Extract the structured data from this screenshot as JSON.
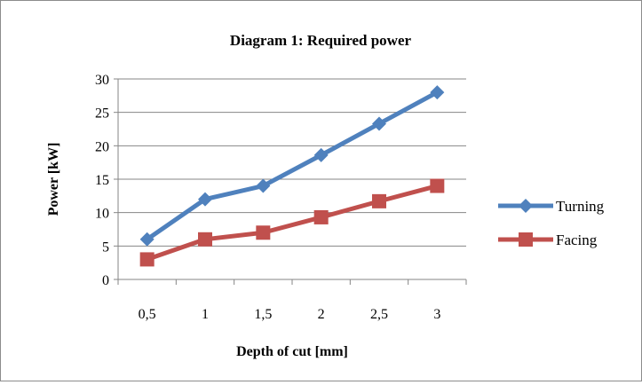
{
  "chart_data": {
    "type": "line",
    "title": "Diagram 1: Required power",
    "xlabel": "Depth of cut [mm]",
    "ylabel": "Power [kW]",
    "categories": [
      "0,5",
      "1",
      "1,5",
      "2",
      "2,5",
      "3"
    ],
    "ylim": [
      0,
      30
    ],
    "yticks": [
      0,
      5,
      10,
      15,
      20,
      25,
      30
    ],
    "grid": true,
    "legend_position": "right",
    "series": [
      {
        "name": "Turning",
        "values": [
          6,
          12,
          14,
          18.6,
          23.3,
          28
        ],
        "color": "#4F81BD",
        "marker": "diamond"
      },
      {
        "name": "Facing",
        "values": [
          3,
          6,
          7,
          9.3,
          11.7,
          14
        ],
        "color": "#C0504D",
        "marker": "square"
      }
    ]
  }
}
